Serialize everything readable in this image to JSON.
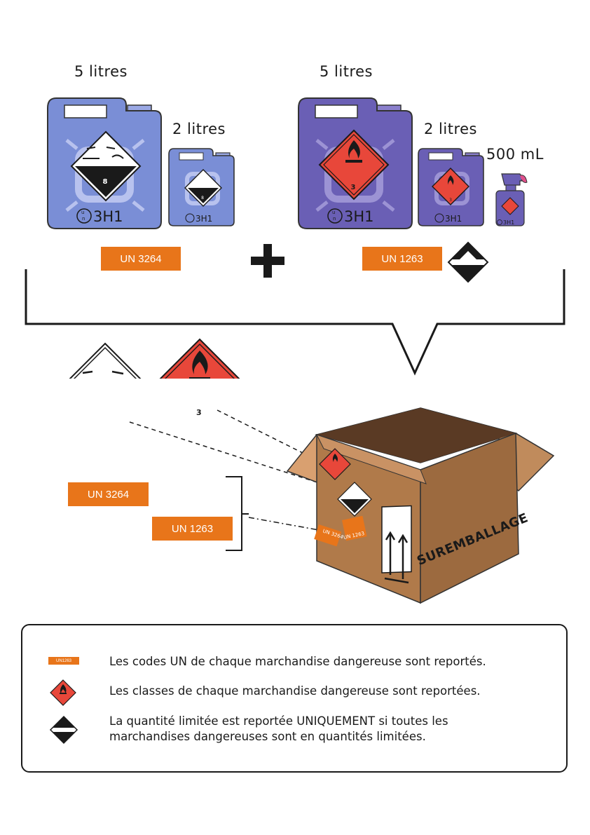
{
  "top": {
    "left_group": {
      "large_volume": "5 litres",
      "small_volume": "2 litres",
      "un_code": "UN 3264"
    },
    "right_group": {
      "large_volume": "5 litres",
      "small_volume": "2 litres",
      "spray_volume": "500 mL",
      "un_code": "UN 1263"
    },
    "jerrycan_marking": "3H1",
    "plus_sign": "+"
  },
  "hazard": {
    "class_8": "8",
    "class_3": "3"
  },
  "middle": {
    "un_code_1": "UN 3264",
    "un_code_2": "UN 1263"
  },
  "box": {
    "label": "SUREMBALLAGE",
    "un_label_1": "UN 3264",
    "un_label_2": "UN 1263"
  },
  "legend": {
    "un_sample": "UN1263",
    "line1": "Les codes UN de chaque marchandise dangereuse sont reportés.",
    "line2": "Les classes de chaque marchandise dangereuse sont reportées.",
    "line3a": "La quantité limitée est reportée UNIQUEMENT si toutes les",
    "line3b": "marchandises dangereuses sont en quantités limitées."
  },
  "colors": {
    "orange": "#e8751a",
    "flammable_red": "#e8473a",
    "can_blue": "#7a8ed6",
    "can_purple": "#6a5fb5",
    "cardboard": "#b07a4a"
  }
}
